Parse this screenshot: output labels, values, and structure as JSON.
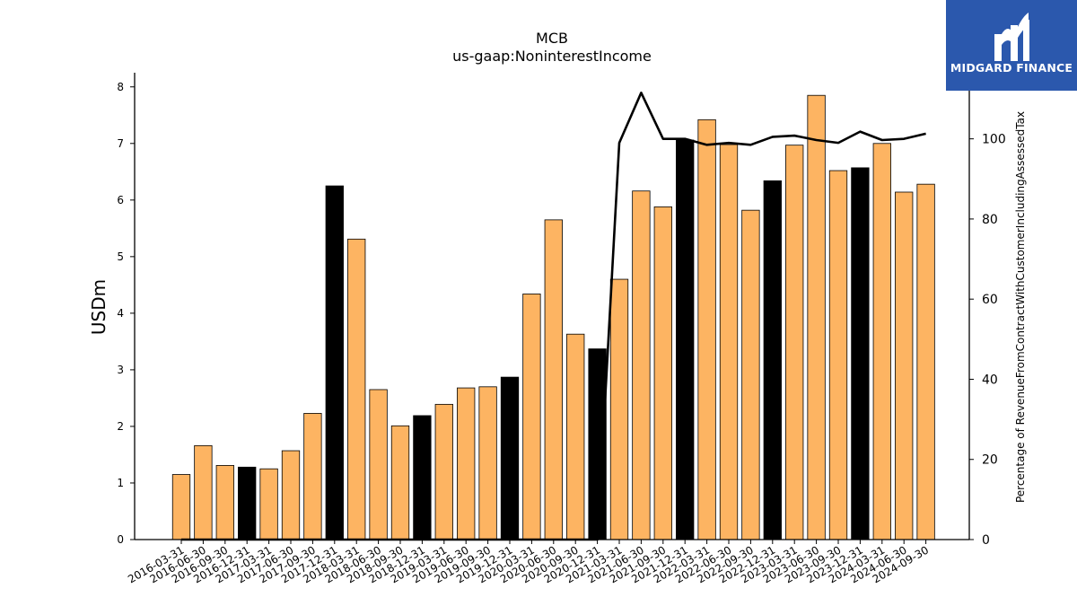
{
  "chart_data": {
    "type": "bar",
    "title": "MCB",
    "subtitle": "us-gaap:NoninterestIncome",
    "ylabel": "USDm",
    "y2label": "Percentage of RevenueFromContractWithCustomerIncludingAssessedTax",
    "ylim": [
      0,
      8.25
    ],
    "y2lim": [
      0,
      116.5
    ],
    "yticks": [
      0,
      1,
      2,
      3,
      4,
      5,
      6,
      7,
      8
    ],
    "y2ticks": [
      0,
      20,
      40,
      60,
      80,
      100
    ],
    "categories": [
      "2016-03-31",
      "2016-06-30",
      "2016-09-30",
      "2016-12-31",
      "2017-03-31",
      "2017-06-30",
      "2017-09-30",
      "2017-12-31",
      "2018-03-31",
      "2018-06-30",
      "2018-09-30",
      "2018-12-31",
      "2019-03-31",
      "2019-06-30",
      "2019-09-30",
      "2019-12-31",
      "2020-03-31",
      "2020-06-30",
      "2020-09-30",
      "2020-12-31",
      "2021-03-31",
      "2021-06-30",
      "2021-09-30",
      "2021-12-31",
      "2022-03-31",
      "2022-06-30",
      "2022-09-30",
      "2022-12-31",
      "2023-03-31",
      "2023-06-30",
      "2023-09-30",
      "2023-12-31",
      "2024-03-31",
      "2024-06-30",
      "2024-09-30"
    ],
    "series": [
      {
        "type": "bar",
        "values": [
          1.15,
          1.66,
          1.31,
          1.28,
          1.25,
          1.57,
          2.23,
          6.25,
          5.31,
          2.65,
          2.01,
          2.19,
          2.39,
          2.68,
          2.7,
          2.87,
          4.34,
          5.65,
          3.63,
          3.37,
          4.6,
          6.16,
          5.88,
          7.06,
          7.42,
          6.98,
          5.82,
          6.34,
          6.97,
          7.85,
          6.52,
          6.57,
          7.0,
          6.14,
          6.28
        ],
        "highlight": [
          false,
          false,
          false,
          true,
          false,
          false,
          false,
          true,
          false,
          false,
          false,
          true,
          false,
          false,
          false,
          true,
          false,
          false,
          false,
          true,
          false,
          false,
          false,
          true,
          false,
          false,
          false,
          true,
          false,
          false,
          false,
          true,
          false,
          false,
          false
        ]
      },
      {
        "type": "line",
        "axis": "right",
        "values": [
          0,
          0,
          0,
          0,
          0,
          0,
          0,
          0,
          0,
          0,
          0,
          0,
          0,
          0,
          0,
          0,
          0,
          0,
          0,
          0,
          99.0,
          111.5,
          100.0,
          100.0,
          98.5,
          99.0,
          98.5,
          100.5,
          100.8,
          99.7,
          99.0,
          101.8,
          99.7,
          100.0,
          101.3
        ]
      }
    ],
    "colors": {
      "bar": "#fdb462",
      "highlight_bar": "#000000",
      "line": "#000000"
    },
    "grid": false
  },
  "logo": {
    "text": "MIDGARD FINANCE",
    "background": "#2b58ad"
  }
}
